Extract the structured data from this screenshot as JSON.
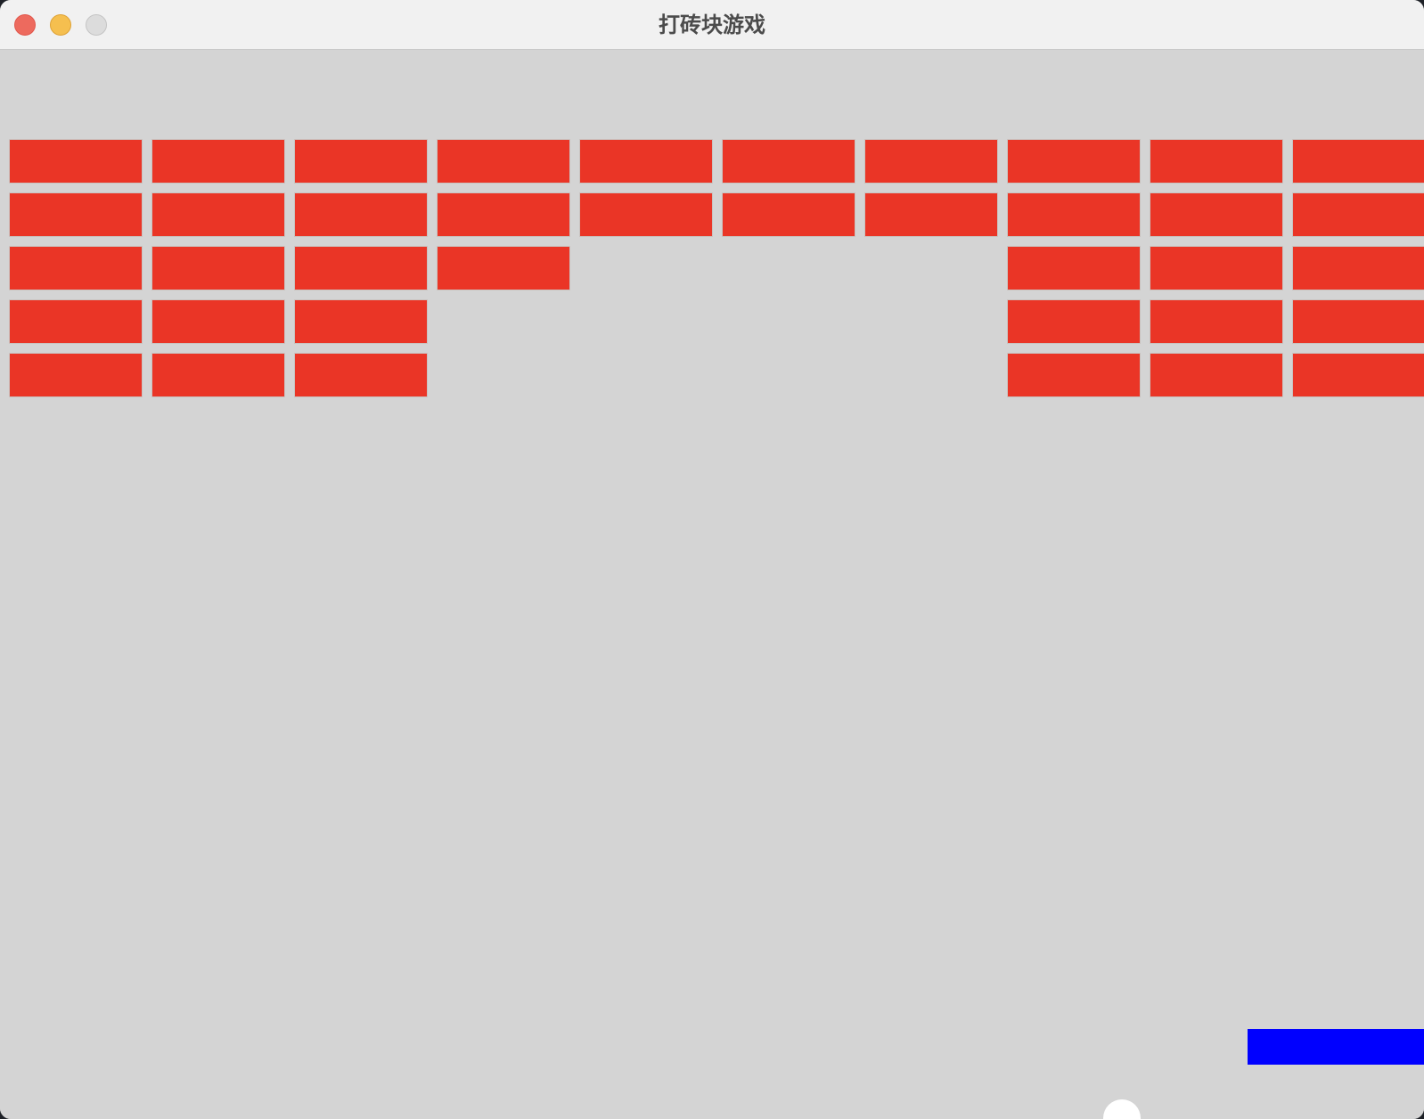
{
  "window": {
    "title": "打砖块游戏"
  },
  "colors": {
    "close": "#ed6a5e",
    "minimize": "#f5bf4f",
    "zoom": "#dcdcdc",
    "board_background": "#d4d4d4",
    "brick": "#ea3526",
    "paddle": "#0000ff",
    "ball": "#ffffff"
  },
  "bricks": {
    "rows": 5,
    "columns": 10,
    "remaining": [
      [
        1,
        1,
        1,
        1,
        1,
        1,
        1,
        1,
        1,
        1
      ],
      [
        1,
        1,
        1,
        1,
        1,
        1,
        1,
        1,
        1,
        1
      ],
      [
        1,
        1,
        1,
        1,
        0,
        0,
        0,
        1,
        1,
        1
      ],
      [
        1,
        1,
        1,
        0,
        0,
        0,
        0,
        1,
        1,
        1
      ],
      [
        1,
        1,
        1,
        0,
        0,
        0,
        0,
        1,
        1,
        1
      ]
    ]
  }
}
